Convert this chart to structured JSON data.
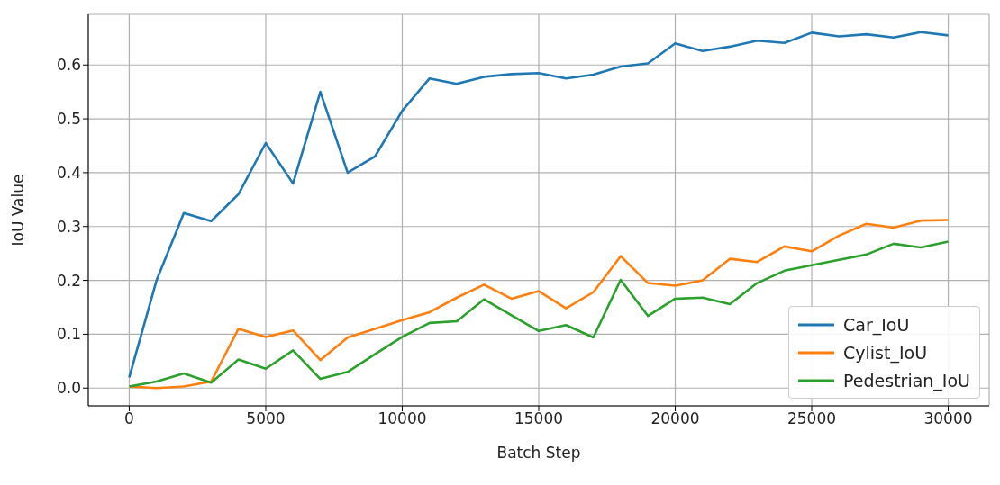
{
  "chart_data": {
    "type": "line",
    "xlabel": "Batch Step",
    "ylabel": "IoU Value",
    "x": [
      0,
      1000,
      2000,
      3000,
      4000,
      5000,
      6000,
      7000,
      8000,
      9000,
      10000,
      11000,
      12000,
      13000,
      14000,
      15000,
      16000,
      17000,
      18000,
      19000,
      20000,
      21000,
      22000,
      23000,
      24000,
      25000,
      26000,
      27000,
      28000,
      29000,
      30000
    ],
    "series": [
      {
        "name": "Car_IoU",
        "color": "#1f77b4",
        "values": [
          0.02,
          0.2,
          0.325,
          0.31,
          0.36,
          0.455,
          0.38,
          0.55,
          0.4,
          0.43,
          0.515,
          0.575,
          0.565,
          0.578,
          0.583,
          0.585,
          0.575,
          0.582,
          0.597,
          0.603,
          0.64,
          0.626,
          0.634,
          0.645,
          0.641,
          0.66,
          0.653,
          0.657,
          0.651,
          0.661,
          0.655
        ]
      },
      {
        "name": "Cylist_IoU",
        "color": "#ff7f0e",
        "values": [
          0.003,
          0.0,
          0.003,
          0.012,
          0.11,
          0.095,
          0.107,
          0.052,
          0.094,
          0.11,
          0.126,
          0.141,
          0.168,
          0.192,
          0.166,
          0.18,
          0.148,
          0.178,
          0.245,
          0.195,
          0.19,
          0.2,
          0.24,
          0.234,
          0.263,
          0.254,
          0.283,
          0.305,
          0.298,
          0.311,
          0.312
        ]
      },
      {
        "name": "Pedestrian_IoU",
        "color": "#2ca02c",
        "values": [
          0.003,
          0.012,
          0.027,
          0.01,
          0.053,
          0.036,
          0.07,
          0.017,
          0.03,
          0.063,
          0.095,
          0.121,
          0.124,
          0.165,
          0.135,
          0.106,
          0.117,
          0.094,
          0.201,
          0.134,
          0.166,
          0.168,
          0.156,
          0.195,
          0.218,
          0.228,
          0.238,
          0.248,
          0.268,
          0.261,
          0.272
        ]
      }
    ],
    "xlim": [
      -1500,
      31500
    ],
    "xticks": [
      0,
      5000,
      10000,
      15000,
      20000,
      25000,
      30000
    ],
    "ylim": [
      -0.033,
      0.694
    ],
    "yticks": [
      {
        "value": 0,
        "label": "0.0"
      },
      0.1,
      0.2,
      0.3,
      0.4,
      0.5,
      0.6
    ],
    "grid": true,
    "legend": "bottom right",
    "marker": "none",
    "line_style": "solid"
  }
}
